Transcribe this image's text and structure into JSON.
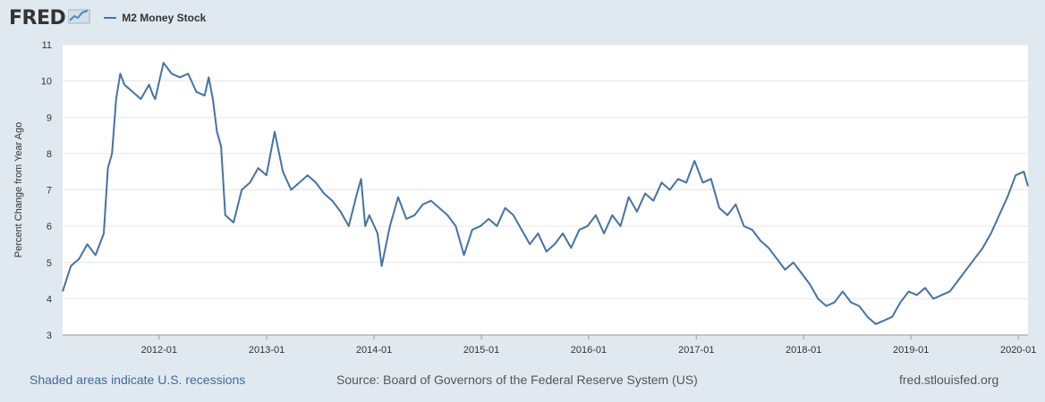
{
  "header": {
    "logo_text": "FRED",
    "logo_icon": "chart-line-icon",
    "legend_label": "M2 Money Stock"
  },
  "colors": {
    "background": "#e1e9f0",
    "plot_bg": "#ffffff",
    "series": "#4572a7",
    "grid": "#e6e6e6"
  },
  "footer": {
    "recessions_link": "Shaded areas indicate U.S. recessions",
    "source": "Source: Board of Governors of the Federal Reserve System (US)",
    "site": "fred.stlouisfed.org"
  },
  "chart_data": {
    "type": "line",
    "title": "",
    "xlabel": "",
    "ylabel": "Percent Change from Year Ago",
    "ylim": [
      3,
      11
    ],
    "xlim": [
      "2011-02-07",
      "2020-02-03"
    ],
    "yticks": [
      3,
      4,
      5,
      6,
      7,
      8,
      9,
      10,
      11
    ],
    "xticks": [
      "2012-01",
      "2013-01",
      "2014-01",
      "2015-01",
      "2016-01",
      "2017-01",
      "2018-01",
      "2019-01",
      "2020-01"
    ],
    "grid": true,
    "legend": "top-left",
    "series": [
      {
        "name": "M2 Money Stock",
        "x": [
          "2011-02-07",
          "2011-03-07",
          "2011-04-04",
          "2011-05-02",
          "2011-05-30",
          "2011-06-27",
          "2011-07-11",
          "2011-07-25",
          "2011-08-08",
          "2011-08-22",
          "2011-09-05",
          "2011-10-03",
          "2011-10-31",
          "2011-11-28",
          "2011-12-12",
          "2011-12-19",
          "2012-01-16",
          "2012-02-13",
          "2012-03-12",
          "2012-04-09",
          "2012-05-07",
          "2012-06-04",
          "2012-06-18",
          "2012-07-02",
          "2012-07-16",
          "2012-07-30",
          "2012-08-13",
          "2012-09-10",
          "2012-10-08",
          "2012-11-05",
          "2012-12-03",
          "2012-12-31",
          "2013-01-14",
          "2013-01-28",
          "2013-02-25",
          "2013-03-25",
          "2013-04-22",
          "2013-05-20",
          "2013-06-17",
          "2013-07-15",
          "2013-08-12",
          "2013-09-09",
          "2013-10-07",
          "2013-11-04",
          "2013-11-18",
          "2013-12-02",
          "2013-12-16",
          "2014-01-13",
          "2014-01-27",
          "2014-02-24",
          "2014-03-24",
          "2014-04-21",
          "2014-05-19",
          "2014-06-16",
          "2014-07-14",
          "2014-08-11",
          "2014-09-08",
          "2014-10-06",
          "2014-11-03",
          "2014-12-01",
          "2014-12-29",
          "2015-01-26",
          "2015-02-23",
          "2015-03-23",
          "2015-04-20",
          "2015-05-18",
          "2015-06-15",
          "2015-07-13",
          "2015-08-10",
          "2015-09-07",
          "2015-10-05",
          "2015-11-02",
          "2015-11-30",
          "2015-12-28",
          "2016-01-25",
          "2016-02-22",
          "2016-03-21",
          "2016-04-18",
          "2016-05-16",
          "2016-06-13",
          "2016-07-11",
          "2016-08-08",
          "2016-09-05",
          "2016-10-03",
          "2016-10-31",
          "2016-11-28",
          "2016-12-26",
          "2017-01-23",
          "2017-02-20",
          "2017-03-20",
          "2017-04-17",
          "2017-05-15",
          "2017-06-12",
          "2017-07-10",
          "2017-08-07",
          "2017-09-04",
          "2017-10-02",
          "2017-10-30",
          "2017-11-27",
          "2017-12-25",
          "2018-01-22",
          "2018-02-19",
          "2018-03-19",
          "2018-04-16",
          "2018-05-14",
          "2018-06-11",
          "2018-07-09",
          "2018-08-06",
          "2018-09-03",
          "2018-10-01",
          "2018-10-29",
          "2018-11-26",
          "2018-12-24",
          "2019-01-21",
          "2019-02-18",
          "2019-03-18",
          "2019-04-15",
          "2019-05-13",
          "2019-06-10",
          "2019-07-08",
          "2019-08-05",
          "2019-09-02",
          "2019-09-30",
          "2019-10-28",
          "2019-11-25",
          "2019-12-23",
          "2020-01-20",
          "2020-02-03"
        ],
        "values": [
          4.2,
          4.9,
          5.1,
          5.5,
          5.2,
          5.8,
          7.6,
          8.0,
          9.5,
          10.2,
          9.9,
          9.7,
          9.5,
          9.9,
          9.6,
          9.5,
          10.5,
          10.2,
          10.1,
          10.2,
          9.7,
          9.6,
          10.1,
          9.5,
          8.6,
          8.2,
          6.3,
          6.1,
          7.0,
          7.2,
          7.6,
          7.4,
          8.0,
          8.6,
          7.5,
          7.0,
          7.2,
          7.4,
          7.2,
          6.9,
          6.7,
          6.4,
          6.0,
          6.9,
          7.3,
          6.0,
          6.3,
          5.8,
          4.9,
          6.0,
          6.8,
          6.2,
          6.3,
          6.6,
          6.7,
          6.5,
          6.3,
          6.0,
          5.2,
          5.9,
          6.0,
          6.2,
          6.0,
          6.5,
          6.3,
          5.9,
          5.5,
          5.8,
          5.3,
          5.5,
          5.8,
          5.4,
          5.9,
          6.0,
          6.3,
          5.8,
          6.3,
          6.0,
          6.8,
          6.4,
          6.9,
          6.7,
          7.2,
          7.0,
          7.3,
          7.2,
          7.8,
          7.2,
          7.3,
          6.5,
          6.3,
          6.6,
          6.0,
          5.9,
          5.6,
          5.4,
          5.1,
          4.8,
          5.0,
          4.7,
          4.4,
          4.0,
          3.8,
          3.9,
          4.2,
          3.9,
          3.8,
          3.5,
          3.3,
          3.4,
          3.5,
          3.9,
          4.2,
          4.1,
          4.3,
          4.0,
          4.1,
          4.2,
          4.5,
          4.8,
          5.1,
          5.4,
          5.8,
          6.3,
          6.8,
          7.4,
          7.5,
          7.1
        ]
      }
    ]
  }
}
